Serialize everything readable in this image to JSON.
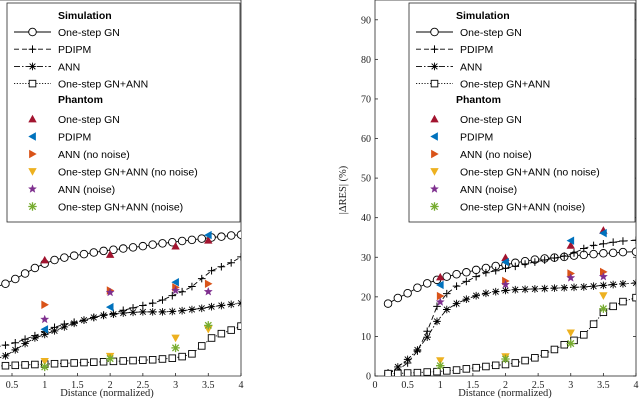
{
  "chart_data": [
    {
      "type": "line",
      "xlabel": "Distance (normalized)",
      "ylabel": "",
      "xlim": [
        0.25,
        4.05
      ],
      "ylim": [
        0,
        95
      ],
      "xticks": [
        "0.5",
        "1",
        "1.5",
        "2",
        "2.5",
        "3",
        "3.5",
        "4"
      ],
      "yticks": [],
      "legend": {
        "simulation_title": "Simulation",
        "phantom_title": "Phantom",
        "simulation": [
          {
            "name": "One-step GN",
            "style": "solid",
            "marker": "circle"
          },
          {
            "name": "PDIPM",
            "style": "dashed",
            "marker": "plus"
          },
          {
            "name": "ANN",
            "style": "dashdot",
            "marker": "star"
          },
          {
            "name": "One-step GN+ANN",
            "style": "dotted",
            "marker": "square"
          }
        ],
        "phantom": [
          {
            "name": "One-step GN",
            "marker": "triangle-up",
            "color": "#a2142f"
          },
          {
            "name": "PDIPM",
            "marker": "triangle-left",
            "color": "#0072bd"
          },
          {
            "name": "ANN (no noise)",
            "marker": "triangle-right",
            "color": "#d95319"
          },
          {
            "name": "One-step GN+ANN (no noise)",
            "marker": "triangle-down",
            "color": "#edb120"
          },
          {
            "name": "ANN (noise)",
            "marker": "star",
            "color": "#7e2f8e"
          },
          {
            "name": "One-step GN+ANN (noise)",
            "marker": "asterisk",
            "color": "#77ac30"
          }
        ]
      },
      "simulation_series": [
        {
          "name": "One-step GN",
          "x": [
            0.25,
            0.4,
            0.55,
            0.7,
            0.85,
            1.0,
            1.15,
            1.3,
            1.45,
            1.6,
            1.75,
            1.9,
            2.05,
            2.2,
            2.35,
            2.5,
            2.65,
            2.8,
            2.95,
            3.1,
            3.25,
            3.4,
            3.55,
            3.7,
            3.85,
            4.0
          ],
          "y": [
            22.5,
            23.3,
            24.5,
            25.9,
            27.3,
            28.4,
            29.3,
            29.9,
            30.4,
            30.8,
            31.2,
            31.6,
            31.9,
            32.2,
            32.5,
            32.8,
            33.2,
            33.5,
            33.8,
            34.1,
            34.4,
            34.7,
            35.0,
            35.2,
            35.5,
            35.7
          ]
        },
        {
          "name": "PDIPM",
          "x": [
            0.25,
            0.4,
            0.55,
            0.7,
            0.85,
            1.0,
            1.15,
            1.3,
            1.45,
            1.6,
            1.75,
            1.9,
            2.05,
            2.2,
            2.35,
            2.5,
            2.65,
            2.8,
            2.95,
            3.1,
            3.25,
            3.4,
            3.55,
            3.7,
            3.85,
            4.0
          ],
          "y": [
            7.3,
            7.8,
            8.4,
            9.3,
            10.2,
            11.2,
            12.3,
            13.1,
            13.6,
            14.1,
            14.8,
            15.4,
            15.8,
            16.6,
            17.2,
            17.8,
            18.4,
            19.2,
            20.3,
            21.3,
            22.6,
            24.6,
            26.6,
            27.6,
            28.6,
            30.1
          ]
        },
        {
          "name": "ANN",
          "x": [
            0.25,
            0.4,
            0.55,
            0.7,
            0.85,
            1.0,
            1.15,
            1.3,
            1.45,
            1.6,
            1.75,
            1.9,
            2.05,
            2.2,
            2.35,
            2.5,
            2.65,
            2.8,
            2.95,
            3.1,
            3.25,
            3.4,
            3.55,
            3.7,
            3.85,
            4.0
          ],
          "y": [
            4.3,
            5.1,
            6.6,
            8.2,
            9.6,
            10.5,
            11.4,
            12.4,
            13.3,
            14.1,
            14.8,
            15.3,
            15.6,
            15.9,
            16.1,
            16.2,
            16.2,
            16.2,
            16.3,
            16.5,
            16.8,
            17.1,
            17.5,
            17.8,
            18.1,
            18.4
          ]
        },
        {
          "name": "One-step GN+ANN",
          "x": [
            0.25,
            0.4,
            0.55,
            0.7,
            0.85,
            1.0,
            1.15,
            1.3,
            1.45,
            1.6,
            1.75,
            1.9,
            2.05,
            2.2,
            2.35,
            2.5,
            2.65,
            2.8,
            2.95,
            3.1,
            3.25,
            3.4,
            3.55,
            3.7,
            3.85,
            4.0
          ],
          "y": [
            2.5,
            2.6,
            2.7,
            2.8,
            2.9,
            3.0,
            3.1,
            3.2,
            3.3,
            3.4,
            3.5,
            3.6,
            3.7,
            3.8,
            3.9,
            4.0,
            4.1,
            4.3,
            4.5,
            4.9,
            5.6,
            7.6,
            9.6,
            10.7,
            11.6,
            12.6
          ]
        }
      ],
      "phantom_points": [
        {
          "name": "One-step GN",
          "x": [
            1,
            2,
            3,
            3.5
          ],
          "y": [
            29.3,
            30.7,
            32.8,
            34.3
          ]
        },
        {
          "name": "PDIPM",
          "x": [
            1,
            2,
            3,
            3.5
          ],
          "y": [
            11.8,
            17.4,
            23.7,
            35.6
          ]
        },
        {
          "name": "ANN (no noise)",
          "x": [
            1,
            2,
            3,
            3.5
          ],
          "y": [
            18.0,
            21.6,
            22.4,
            23.3
          ]
        },
        {
          "name": "One-step GN+ANN (no noise)",
          "x": [
            1,
            2,
            3,
            3.5
          ],
          "y": [
            3.7,
            5.0,
            9.6,
            11.8
          ]
        },
        {
          "name": "ANN (noise)",
          "x": [
            1,
            2,
            3,
            3.5
          ],
          "y": [
            14.3,
            21.1,
            21.6,
            21.3
          ]
        },
        {
          "name": "One-step GN+ANN (noise)",
          "x": [
            1,
            2,
            3,
            3.5
          ],
          "y": [
            2.3,
            4.4,
            7.1,
            12.8
          ]
        }
      ]
    },
    {
      "type": "line",
      "xlabel": "Distance (normalized)",
      "ylabel": "|ΔRES| (%)",
      "xlim": [
        0,
        4
      ],
      "ylim": [
        0,
        95
      ],
      "xticks": [
        "0",
        "0.5",
        "1",
        "1.5",
        "2",
        "2.5",
        "3",
        "3.5",
        "4"
      ],
      "yticks": [
        "0",
        "10",
        "20",
        "30",
        "40",
        "50",
        "60",
        "70",
        "80",
        "90"
      ],
      "legend": {
        "simulation_title": "Simulation",
        "phantom_title": "Phantom",
        "simulation": [
          {
            "name": "One-step GN",
            "style": "solid",
            "marker": "circle"
          },
          {
            "name": "PDIPM",
            "style": "dashed",
            "marker": "plus"
          },
          {
            "name": "ANN",
            "style": "dashdot",
            "marker": "star"
          },
          {
            "name": "One-step GN+ANN",
            "style": "dotted",
            "marker": "square"
          }
        ],
        "phantom": [
          {
            "name": "One-step GN",
            "marker": "triangle-up",
            "color": "#a2142f"
          },
          {
            "name": "PDIPM",
            "marker": "triangle-left",
            "color": "#0072bd"
          },
          {
            "name": "ANN (no noise)",
            "marker": "triangle-right",
            "color": "#d95319"
          },
          {
            "name": "One-step GN+ANN (no noise)",
            "marker": "triangle-down",
            "color": "#edb120"
          },
          {
            "name": "ANN (noise)",
            "marker": "star",
            "color": "#7e2f8e"
          },
          {
            "name": "One-step GN+ANN (noise)",
            "marker": "asterisk",
            "color": "#77ac30"
          }
        ]
      },
      "simulation_series": [
        {
          "name": "One-step GN",
          "x": [
            0.2,
            0.35,
            0.5,
            0.65,
            0.8,
            0.95,
            1.1,
            1.25,
            1.4,
            1.55,
            1.7,
            1.85,
            2.0,
            2.15,
            2.3,
            2.45,
            2.6,
            2.75,
            2.9,
            3.05,
            3.2,
            3.35,
            3.5,
            3.65,
            3.8,
            4.0
          ],
          "y": [
            18.3,
            19.7,
            20.9,
            22.3,
            23.4,
            24.3,
            25.1,
            25.7,
            26.2,
            26.8,
            27.3,
            27.8,
            28.1,
            28.6,
            29.0,
            29.4,
            29.7,
            29.9,
            30.1,
            30.4,
            30.6,
            30.8,
            31.0,
            31.1,
            31.3,
            31.4
          ]
        },
        {
          "name": "PDIPM",
          "x": [
            0.2,
            0.35,
            0.5,
            0.65,
            0.8,
            0.95,
            1.1,
            1.25,
            1.4,
            1.55,
            1.7,
            1.85,
            2.0,
            2.15,
            2.3,
            2.45,
            2.6,
            2.75,
            2.9,
            3.05,
            3.2,
            3.35,
            3.5,
            3.65,
            3.8,
            4.0
          ],
          "y": [
            0.8,
            1.5,
            3.3,
            6.3,
            11.3,
            17.6,
            20.8,
            22.7,
            23.9,
            25.1,
            26.1,
            26.6,
            27.2,
            27.7,
            28.3,
            28.8,
            29.3,
            29.8,
            30.3,
            31.1,
            32.2,
            33.0,
            33.4,
            33.8,
            34.1,
            34.3
          ]
        },
        {
          "name": "ANN",
          "x": [
            0.2,
            0.35,
            0.5,
            0.65,
            0.8,
            0.95,
            1.1,
            1.25,
            1.4,
            1.55,
            1.7,
            1.85,
            2.0,
            2.15,
            2.3,
            2.45,
            2.6,
            2.75,
            2.9,
            3.05,
            3.2,
            3.35,
            3.5,
            3.65,
            3.8,
            4.0
          ],
          "y": [
            0.5,
            2.3,
            4.2,
            6.6,
            9.8,
            13.8,
            16.8,
            18.3,
            19.4,
            20.3,
            20.9,
            21.3,
            21.6,
            21.8,
            21.9,
            22.0,
            22.1,
            22.2,
            22.3,
            22.4,
            22.5,
            22.7,
            22.9,
            23.1,
            23.3,
            23.5
          ]
        },
        {
          "name": "One-step GN+ANN",
          "x": [
            0.2,
            0.35,
            0.5,
            0.65,
            0.8,
            0.95,
            1.1,
            1.25,
            1.4,
            1.55,
            1.7,
            1.85,
            2.0,
            2.15,
            2.3,
            2.45,
            2.6,
            2.75,
            2.9,
            3.05,
            3.2,
            3.35,
            3.5,
            3.65,
            3.8,
            4.0
          ],
          "y": [
            0.6,
            0.65,
            0.75,
            0.85,
            1.0,
            1.1,
            1.3,
            1.5,
            1.8,
            2.1,
            2.4,
            2.7,
            2.9,
            3.3,
            3.9,
            4.6,
            5.6,
            6.7,
            7.9,
            9.0,
            10.4,
            13.1,
            16.1,
            17.6,
            18.8,
            19.8
          ]
        }
      ],
      "phantom_points": [
        {
          "name": "One-step GN",
          "x": [
            1,
            2,
            3,
            3.5
          ],
          "y": [
            25.0,
            29.9,
            33.0,
            36.8
          ]
        },
        {
          "name": "PDIPM",
          "x": [
            1,
            2,
            3,
            3.5
          ],
          "y": [
            23.0,
            28.8,
            34.2,
            36.1
          ]
        },
        {
          "name": "ANN (no noise)",
          "x": [
            1,
            2,
            3,
            3.5
          ],
          "y": [
            20.2,
            24.0,
            25.9,
            26.3
          ]
        },
        {
          "name": "One-step GN+ANN (no noise)",
          "x": [
            1,
            2,
            3,
            3.5
          ],
          "y": [
            3.9,
            4.9,
            10.9,
            20.3
          ]
        },
        {
          "name": "ANN (noise)",
          "x": [
            1,
            2,
            3,
            3.5
          ],
          "y": [
            18.7,
            23.1,
            24.8,
            25.1
          ]
        },
        {
          "name": "One-step GN+ANN (noise)",
          "x": [
            1,
            2,
            3,
            3.5
          ],
          "y": [
            2.6,
            4.3,
            8.2,
            17.0
          ]
        }
      ]
    }
  ]
}
